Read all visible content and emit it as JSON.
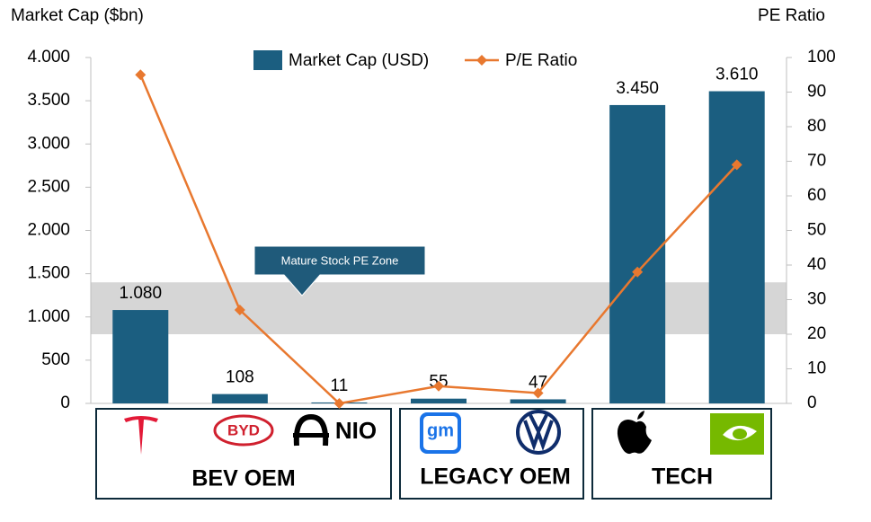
{
  "chart_data": {
    "type": "combo",
    "y_axis_title": "Market Cap ($bn)",
    "y2_axis_title": "PE Ratio",
    "categories": [
      null,
      null,
      null,
      null,
      null,
      null,
      null
    ],
    "series": [
      {
        "name": "Market Cap (USD)",
        "type": "bar",
        "axis": "y",
        "color": "#1b5e80",
        "values": [
          1080,
          108,
          11,
          55,
          47,
          3450,
          3610
        ],
        "value_labels": [
          "1.080",
          "108",
          "11",
          "55",
          "47",
          "3.450",
          "3.610"
        ]
      },
      {
        "name": "P/E Ratio",
        "type": "line",
        "axis": "y2",
        "color": "#e8782f",
        "values": [
          95,
          27,
          0,
          5,
          3,
          38,
          69
        ]
      }
    ],
    "ylim": [
      0,
      4000
    ],
    "yticks": [
      0,
      500,
      {
        "value": 1000,
        "label": "1.000"
      },
      {
        "value": 1500,
        "label": "1.500"
      },
      {
        "value": 2000,
        "label": "2.000"
      },
      {
        "value": 2500,
        "label": "2.500"
      },
      {
        "value": 3000,
        "label": "3.000"
      },
      {
        "value": 3500,
        "label": "3.500"
      },
      {
        "value": 4000,
        "label": "4.000"
      }
    ],
    "y2lim": [
      0,
      100
    ],
    "y2ticks": [
      0,
      10,
      20,
      30,
      40,
      50,
      60,
      70,
      80,
      90,
      100
    ],
    "pe_zone": [
      20,
      35
    ],
    "annotation": "Mature Stock PE Zone",
    "groups": [
      "BEV OEM",
      "LEGACY OEM",
      "TECH"
    ],
    "logo_texts": {
      "byd": "BYD",
      "nio": "NIO",
      "gm": "gm"
    },
    "legend": "top"
  }
}
